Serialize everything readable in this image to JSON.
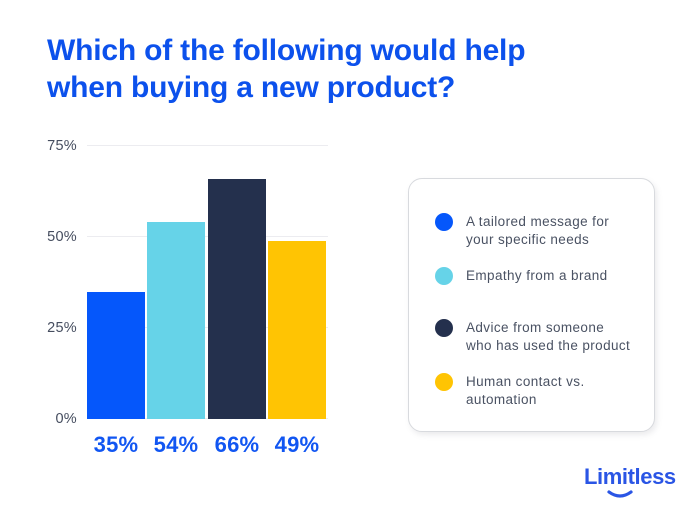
{
  "title": {
    "text": "Which of the following would help\nwhen buying a new product?"
  },
  "colors": {
    "title_blue": "#0c51ec",
    "label_blue": "#1156f2",
    "bar_blue": "#0557fb",
    "cyan": "#66d3e8",
    "navy": "#24304d",
    "yellow": "#ffc403",
    "grid": "#ececf0",
    "axis_text": "#454d5f",
    "legend_text": "#4a5263",
    "card_border": "#d8dade",
    "logo_blue": "#2a55e5"
  },
  "chart_data": {
    "type": "bar",
    "title": "Which of the following would help when buying a new product?",
    "categories": [
      "A tailored message for your specific needs",
      "Empathy from a brand",
      "Advice from someone who has used the product",
      "Human contact vs. automation"
    ],
    "values": [
      35,
      54,
      66,
      49
    ],
    "bar_labels": [
      "35%",
      "54%",
      "66%",
      "49%"
    ],
    "bar_colors": [
      "#0557fb",
      "#66d3e8",
      "#24304d",
      "#ffc403"
    ],
    "xlabel": "",
    "ylabel": "",
    "ylim": [
      0,
      75
    ],
    "y_ticks": [
      {
        "value": 0,
        "label": "0%"
      },
      {
        "value": 25,
        "label": "25%"
      },
      {
        "value": 50,
        "label": "50%"
      },
      {
        "value": 75,
        "label": "75%"
      }
    ],
    "grid": true,
    "legend_position": "right"
  },
  "legend": {
    "items": [
      {
        "label": "A tailored message for\nyour specific needs",
        "color": "#0557fb"
      },
      {
        "label": "Empathy from a brand",
        "color": "#66d3e8"
      },
      {
        "label": "Advice from someone\nwho has used the product",
        "color": "#24304d"
      },
      {
        "label": "Human contact vs.\nautomation",
        "color": "#ffc403"
      }
    ]
  },
  "logo": {
    "text": "Limitless"
  }
}
